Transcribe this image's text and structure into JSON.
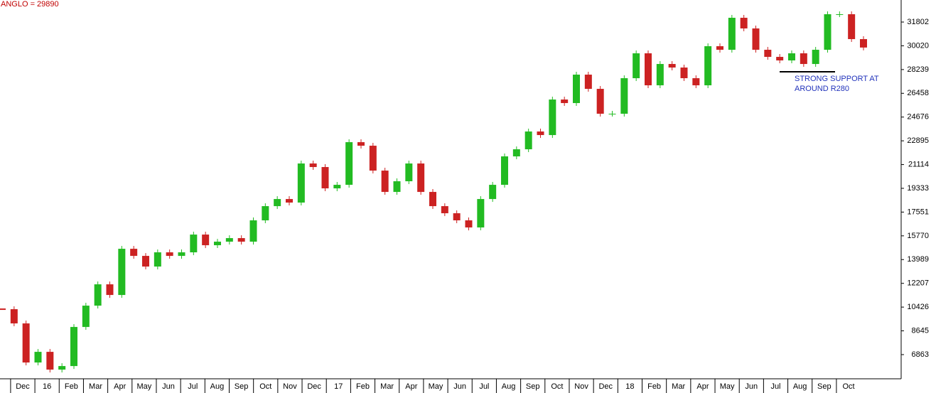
{
  "chart_data": {
    "type": "candlestick",
    "title": "ANGLO = 29890",
    "annotation": [
      "STRONG SUPPORT AT",
      "AROUND R280"
    ],
    "x_labels": [
      "Dec",
      "16",
      "Feb",
      "Mar",
      "Apr",
      "May",
      "Jun",
      "Jul",
      "Aug",
      "Sep",
      "Oct",
      "Nov",
      "Dec",
      "17",
      "Feb",
      "Mar",
      "Apr",
      "May",
      "Jun",
      "Jul",
      "Aug",
      "Sep",
      "Oct",
      "Nov",
      "Dec",
      "18",
      "Feb",
      "Mar",
      "Apr",
      "May",
      "Jun",
      "Jul",
      "Aug",
      "Sep",
      "Oct"
    ],
    "values": [
      10269,
      9203,
      6271,
      7071,
      5738,
      6005,
      8936,
      10535,
      12134,
      11335,
      14799,
      14266,
      13467,
      14533,
      14266,
      14533,
      15865,
      15066,
      15332,
      15599,
      15332,
      16931,
      17997,
      18530,
      18264,
      21195,
      20929,
      19330,
      19596,
      22794,
      22528,
      20662,
      19063,
      19863,
      21195,
      19063,
      17997,
      17464,
      16931,
      16398,
      18530,
      19596,
      21728,
      22261,
      23594,
      23327,
      25992,
      25726,
      27858,
      26792,
      24926,
      24926,
      27591,
      29457,
      27058,
      28657,
      28391,
      27591,
      27058,
      29990,
      29723,
      32122,
      31322,
      29723,
      29190,
      28924,
      29457,
      28657,
      29723,
      32388,
      32388,
      30523,
      29890
    ],
    "up_color": "#22bb22",
    "down_color": "#cc2222",
    "ylim": [
      5050,
      33455
    ],
    "yticks": [
      6863,
      8645,
      10426,
      12207,
      13989,
      15770,
      17551,
      19333,
      21114,
      22895,
      24676,
      26458,
      28239,
      30020,
      31802
    ]
  }
}
